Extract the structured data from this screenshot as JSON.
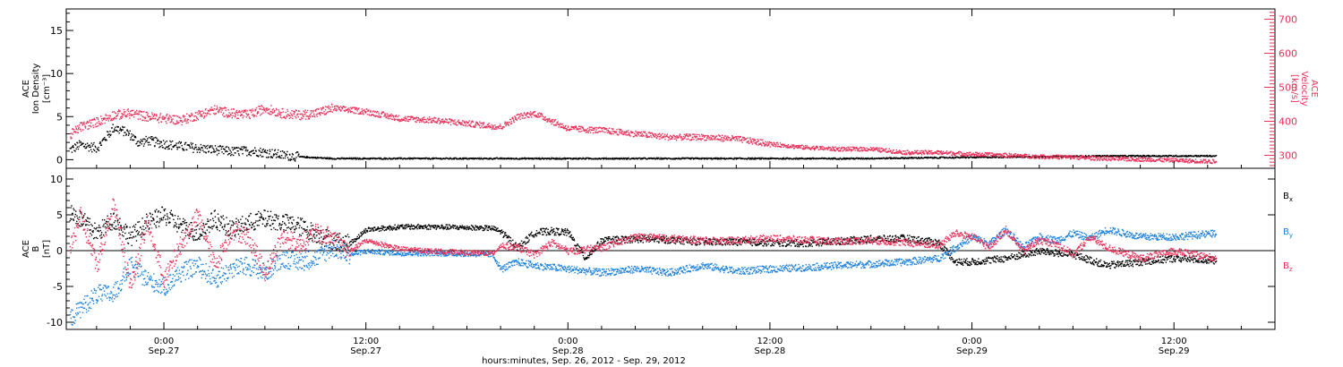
{
  "colors": {
    "black": "#000000",
    "pink": "#e8315a",
    "blue": "#1a7fdc",
    "axis": "#000000"
  },
  "chart_data": [
    {
      "type": "scatter",
      "panel": "ion density and velocity",
      "title": "",
      "left_axis": {
        "label_lines": [
          "ACE",
          "Ion Density",
          "[cm⁻³]"
        ],
        "ylim": [
          -1,
          17.5
        ],
        "ticks": [
          0,
          5,
          10,
          15
        ]
      },
      "right_axis": {
        "label_lines": [
          "ACE",
          "Velocity",
          "[km/s]"
        ],
        "ylim": [
          262,
          730
        ],
        "ticks": [
          300,
          400,
          500,
          600,
          700
        ]
      },
      "x_range_hours_from_sep26_0000": [
        18.2,
        90.0
      ],
      "grid": false,
      "series": [
        {
          "name": "Ion Density",
          "axis": "left",
          "color": "black",
          "hours": [
            18.4,
            19.0,
            20.0,
            21.0,
            21.8,
            22.5,
            23.0,
            24.0,
            25.0,
            26.0,
            27.0,
            28.0,
            29.0,
            30.0,
            31.0,
            32.0,
            33.0,
            34.0,
            36.0,
            40.0,
            45.0,
            50.0,
            55.0,
            60.0,
            65.0,
            70.0,
            75.0,
            80.0,
            85.0,
            86.5
          ],
          "values": [
            1.2,
            1.8,
            1.4,
            3.8,
            3.2,
            2.0,
            2.3,
            1.9,
            1.6,
            1.4,
            1.2,
            1.0,
            1.1,
            0.9,
            0.6,
            0.4,
            0.3,
            0.2,
            0.2,
            0.2,
            0.2,
            0.2,
            0.2,
            0.2,
            0.2,
            0.3,
            0.4,
            0.5,
            0.5,
            0.5
          ]
        },
        {
          "name": "Velocity",
          "axis": "right",
          "color": "pink",
          "hours": [
            18.4,
            19.0,
            20.0,
            21.0,
            22.0,
            23.0,
            24.0,
            25.0,
            26.0,
            27.0,
            28.0,
            29.0,
            30.0,
            31.0,
            32.0,
            33.0,
            34.0,
            36.0,
            38.0,
            40.0,
            42.0,
            43.0,
            44.0,
            45.0,
            46.0,
            48.0,
            50.0,
            52.0,
            54.0,
            56.0,
            58.0,
            60.0,
            62.0,
            64.0,
            66.0,
            68.0,
            70.0,
            72.0,
            74.0,
            76.0,
            78.0,
            80.0,
            82.0,
            84.0,
            86.5
          ],
          "values": [
            360,
            385,
            400,
            420,
            425,
            415,
            410,
            405,
            420,
            435,
            425,
            420,
            440,
            425,
            420,
            425,
            440,
            430,
            410,
            405,
            395,
            390,
            385,
            415,
            425,
            380,
            375,
            365,
            355,
            355,
            350,
            335,
            325,
            320,
            320,
            310,
            310,
            305,
            302,
            298,
            296,
            292,
            290,
            287,
            283
          ]
        }
      ]
    },
    {
      "type": "scatter",
      "panel": "magnetic field components",
      "title": "",
      "left_axis": {
        "label_lines": [
          "ACE",
          "B",
          "[nT]"
        ],
        "ylim": [
          -11,
          11.5
        ],
        "ticks": [
          -10,
          -5,
          0,
          5,
          10
        ]
      },
      "x_range_hours_from_sep26_0000": [
        18.2,
        90.0
      ],
      "zero_line": true,
      "grid": false,
      "series": [
        {
          "name": "Bx",
          "color": "black",
          "hours": [
            18.4,
            19.0,
            20.0,
            21.0,
            22.0,
            23.0,
            24.0,
            25.0,
            26.0,
            27.0,
            28.0,
            29.0,
            30.0,
            31.0,
            32.0,
            33.0,
            34.0,
            35.0,
            36.0,
            38.0,
            40.0,
            42.0,
            43.5,
            44.0,
            45.0,
            46.0,
            47.0,
            48.0,
            49.0,
            50.0,
            52.0,
            54.0,
            56.0,
            58.0,
            60.0,
            62.0,
            64.0,
            66.0,
            68.0,
            70.0,
            71.0,
            72.0,
            74.0,
            76.0,
            78.0,
            80.0,
            82.0,
            84.0,
            86.5
          ],
          "values": [
            5.5,
            4.5,
            2.5,
            4.5,
            2.0,
            4.0,
            5.0,
            3.5,
            2.5,
            4.5,
            3.0,
            4.0,
            4.5,
            4.0,
            3.5,
            2.5,
            1.5,
            1.0,
            3.0,
            3.4,
            3.4,
            3.3,
            3.2,
            2.7,
            0.5,
            2.6,
            2.8,
            2.6,
            -1.0,
            1.5,
            1.7,
            1.6,
            1.3,
            1.3,
            1.2,
            1.1,
            1.4,
            1.7,
            1.8,
            1.2,
            -1.5,
            -1.5,
            -1.0,
            0.0,
            -0.5,
            -2.0,
            -1.5,
            -1.0,
            -1.3
          ]
        },
        {
          "name": "By",
          "color": "blue",
          "hours": [
            18.4,
            19.0,
            20.0,
            21.0,
            22.0,
            23.0,
            24.0,
            25.0,
            26.0,
            27.0,
            28.0,
            29.0,
            30.0,
            31.0,
            32.0,
            33.0,
            34.0,
            35.0,
            36.0,
            38.0,
            40.0,
            42.0,
            43.5,
            44.0,
            45.0,
            46.0,
            48.0,
            50.0,
            52.0,
            54.0,
            56.0,
            58.0,
            60.0,
            62.0,
            64.0,
            66.0,
            68.0,
            70.0,
            71.0,
            72.0,
            73.0,
            74.0,
            75.0,
            76.0,
            77.0,
            78.0,
            79.0,
            80.0,
            82.0,
            84.0,
            86.5
          ],
          "values": [
            -9.5,
            -8.0,
            -6.0,
            -6.0,
            -2.0,
            -4.0,
            -5.0,
            -3.0,
            -2.0,
            -4.0,
            -2.5,
            -2.0,
            -3.0,
            -1.0,
            -1.5,
            -1.0,
            0.5,
            -0.5,
            0.0,
            -0.3,
            -0.3,
            -0.4,
            -0.5,
            -2.5,
            -1.5,
            -2.0,
            -2.5,
            -3.0,
            -2.5,
            -3.0,
            -2.0,
            -2.8,
            -2.5,
            -2.3,
            -2.0,
            -1.8,
            -1.5,
            -1.0,
            0.5,
            2.0,
            1.0,
            3.0,
            0.5,
            2.0,
            1.5,
            2.5,
            1.8,
            3.0,
            2.0,
            2.0,
            2.5
          ]
        },
        {
          "name": "Bz",
          "color": "pink",
          "hours": [
            18.4,
            19.0,
            20.0,
            21.0,
            22.0,
            23.0,
            24.0,
            25.0,
            26.0,
            27.0,
            28.0,
            29.0,
            30.0,
            31.0,
            32.0,
            33.0,
            34.0,
            35.0,
            36.0,
            38.0,
            40.0,
            42.0,
            43.5,
            44.0,
            45.0,
            46.0,
            47.0,
            48.0,
            50.0,
            52.0,
            54.0,
            56.0,
            58.0,
            60.0,
            62.0,
            64.0,
            66.0,
            68.0,
            70.0,
            71.0,
            72.0,
            73.0,
            74.0,
            75.0,
            76.0,
            77.0,
            78.0,
            79.0,
            80.0,
            82.0,
            84.0,
            86.5
          ],
          "values": [
            0.0,
            5.0,
            -2.0,
            7.0,
            -5.0,
            4.0,
            -4.0,
            1.0,
            5.0,
            -2.0,
            3.0,
            2.0,
            -3.0,
            2.0,
            1.0,
            2.5,
            2.0,
            0.0,
            1.5,
            0.3,
            0.0,
            -0.2,
            -0.3,
            0.8,
            0.5,
            -0.5,
            1.2,
            0.0,
            0.5,
            2.0,
            1.8,
            1.5,
            1.5,
            1.8,
            1.6,
            1.4,
            1.5,
            1.2,
            0.8,
            2.5,
            2.0,
            0.5,
            3.0,
            0.0,
            1.5,
            1.0,
            -0.5,
            2.0,
            0.5,
            -1.0,
            0.0,
            -1.0
          ]
        }
      ],
      "legend": {
        "placement": "right",
        "entries": [
          {
            "symbol": "B",
            "sub": "x",
            "color": "black"
          },
          {
            "symbol": "B",
            "sub": "y",
            "color": "blue"
          },
          {
            "symbol": "B",
            "sub": "z",
            "color": "pink"
          }
        ]
      }
    }
  ],
  "x_axis": {
    "tick_hours": [
      24,
      36,
      48,
      60,
      72,
      84
    ],
    "tick_time_labels": [
      "0:00",
      "12:00",
      "0:00",
      "12:00",
      "0:00",
      "12:00"
    ],
    "tick_date_labels": [
      "Sep.27",
      "Sep.27",
      "Sep.28",
      "Sep.28",
      "Sep.29",
      "Sep.29"
    ],
    "caption": "hours:minutes, Sep. 26, 2012 - Sep. 29, 2012"
  }
}
